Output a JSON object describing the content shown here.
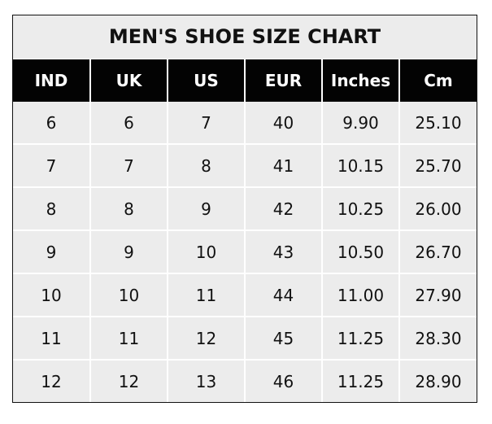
{
  "title": "MEN'S SHOE SIZE CHART",
  "columns": [
    "IND",
    "UK",
    "US",
    "EUR",
    "Inches",
    "Cm"
  ],
  "rows": [
    [
      "6",
      "6",
      "7",
      "40",
      "9.90",
      "25.10"
    ],
    [
      "7",
      "7",
      "8",
      "41",
      "10.15",
      "25.70"
    ],
    [
      "8",
      "8",
      "9",
      "42",
      "10.25",
      "26.00"
    ],
    [
      "9",
      "9",
      "10",
      "43",
      "10.50",
      "26.70"
    ],
    [
      "10",
      "10",
      "11",
      "44",
      "11.00",
      "27.90"
    ],
    [
      "11",
      "11",
      "12",
      "45",
      "11.25",
      "28.30"
    ],
    [
      "12",
      "12",
      "13",
      "46",
      "11.25",
      "28.90"
    ]
  ],
  "colors": {
    "header_bg": "#030303",
    "header_text": "#ffffff",
    "cell_bg": "#ececec"
  }
}
